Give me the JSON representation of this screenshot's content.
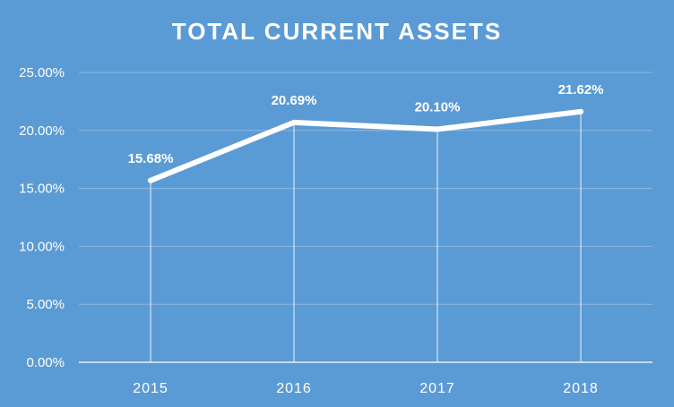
{
  "chart_data": {
    "type": "line",
    "title": "TOTAL CURRENT ASSETS",
    "categories": [
      "2015",
      "2016",
      "2017",
      "2018"
    ],
    "series": [
      {
        "values": [
          15.68,
          20.69,
          20.1,
          21.62
        ]
      }
    ],
    "data_labels": [
      "15.68%",
      "20.69%",
      "20.10%",
      "21.62%"
    ],
    "y_tick_labels": [
      "0.00%",
      "5.00%",
      "10.00%",
      "15.00%",
      "20.00%",
      "25.00%"
    ],
    "y_ticks": [
      0,
      5,
      10,
      15,
      20,
      25
    ],
    "ylim": [
      0,
      25
    ],
    "grid": true,
    "drop_lines": true,
    "legend": "none",
    "colors": {
      "background": "#5b9bd5",
      "line": "#ffffff",
      "grid": "#8cb8e4"
    }
  }
}
